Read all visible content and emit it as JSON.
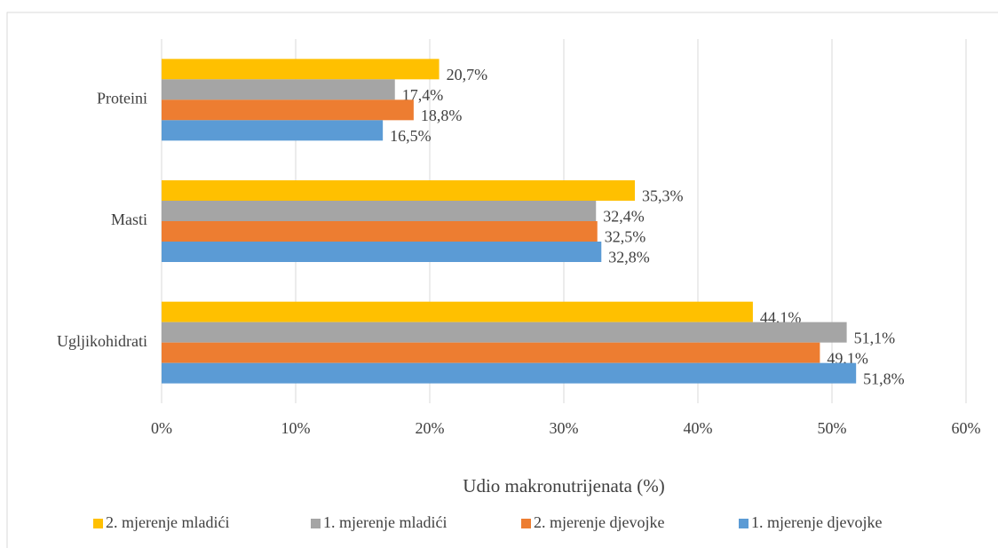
{
  "chart_data": {
    "type": "hbar",
    "categories": [
      "Proteini",
      "Masti",
      "Ugljikohidrati"
    ],
    "series": [
      {
        "name": "2. mjerenje mladići",
        "color": "#ffc000",
        "values": [
          20.7,
          35.3,
          44.1
        ],
        "value_labels": [
          "20,7%",
          "35,3%",
          "44,1%"
        ]
      },
      {
        "name": "1. mjerenje mladići",
        "color": "#a5a5a5",
        "values": [
          17.4,
          32.4,
          51.1
        ],
        "value_labels": [
          "17,4%",
          "32,4%",
          "51,1%"
        ]
      },
      {
        "name": "2. mjerenje djevojke",
        "color": "#ed7d31",
        "values": [
          18.8,
          32.5,
          49.1
        ],
        "value_labels": [
          "18,8%",
          "32,5%",
          "49,1%"
        ]
      },
      {
        "name": "1. mjerenje djevojke",
        "color": "#5b9bd5",
        "values": [
          16.5,
          32.8,
          51.8
        ],
        "value_labels": [
          "16,5%",
          "32,8%",
          "51,8%"
        ]
      }
    ],
    "xlabel": "Udio makronutrijenata (%)",
    "xlim": [
      0,
      60
    ],
    "xticks": [
      {
        "value": 0,
        "label": "0%"
      },
      {
        "value": 10,
        "label": "10%"
      },
      {
        "value": 20,
        "label": "20%"
      },
      {
        "value": 30,
        "label": "30%"
      },
      {
        "value": 40,
        "label": "40%"
      },
      {
        "value": 50,
        "label": "50%"
      },
      {
        "value": 60,
        "label": "60%"
      }
    ],
    "grid": true,
    "legend": "bottom"
  }
}
